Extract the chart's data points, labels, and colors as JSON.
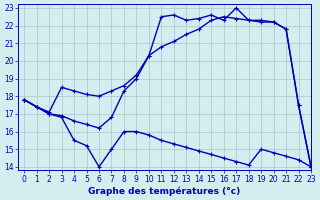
{
  "xlabel": "Graphe des températures (°c)",
  "xlim": [
    -0.5,
    23
  ],
  "ylim": [
    13.8,
    23.2
  ],
  "yticks": [
    14,
    15,
    16,
    17,
    18,
    19,
    20,
    21,
    22,
    23
  ],
  "xticks": [
    0,
    1,
    2,
    3,
    4,
    5,
    6,
    7,
    8,
    9,
    10,
    11,
    12,
    13,
    14,
    15,
    16,
    17,
    18,
    19,
    20,
    21,
    22,
    23
  ],
  "bg_color": "#d4eef0",
  "grid_color": "#a0c8cc",
  "line_color": "#0000bb",
  "line1_x": [
    0,
    1,
    2,
    3,
    4,
    5,
    6,
    7,
    8,
    9,
    10,
    11,
    12,
    13,
    14,
    15,
    16,
    17,
    18,
    19,
    20,
    21,
    22,
    23
  ],
  "line1_y": [
    17.8,
    17.4,
    17.1,
    18.5,
    18.3,
    18.1,
    18.0,
    18.3,
    18.6,
    19.2,
    20.3,
    20.8,
    21.1,
    21.5,
    21.8,
    22.3,
    22.5,
    22.4,
    22.3,
    22.2,
    22.2,
    21.8,
    17.5,
    14.0
  ],
  "line2_x": [
    0,
    1,
    2,
    3,
    4,
    5,
    6,
    7,
    8,
    9,
    10,
    11,
    12,
    13,
    14,
    15,
    16,
    17,
    18,
    19,
    20,
    21,
    22,
    23
  ],
  "line2_y": [
    17.8,
    17.4,
    17.0,
    16.9,
    16.6,
    16.4,
    16.2,
    16.8,
    18.3,
    19.0,
    20.3,
    22.5,
    22.6,
    22.3,
    22.4,
    22.6,
    22.3,
    23.0,
    22.3,
    22.3,
    22.2,
    21.8,
    17.5,
    14.0
  ],
  "line3_x": [
    0,
    1,
    2,
    3,
    4,
    5,
    6,
    7,
    8,
    9,
    10,
    11,
    12,
    13,
    14,
    15,
    16,
    17,
    18,
    19,
    20,
    21,
    22,
    23
  ],
  "line3_y": [
    17.8,
    17.4,
    17.0,
    16.8,
    15.5,
    15.2,
    14.0,
    15.0,
    16.0,
    16.0,
    15.8,
    15.5,
    15.3,
    15.1,
    14.9,
    14.7,
    14.5,
    14.3,
    14.1,
    15.0,
    14.8,
    14.6,
    14.4,
    14.0
  ]
}
